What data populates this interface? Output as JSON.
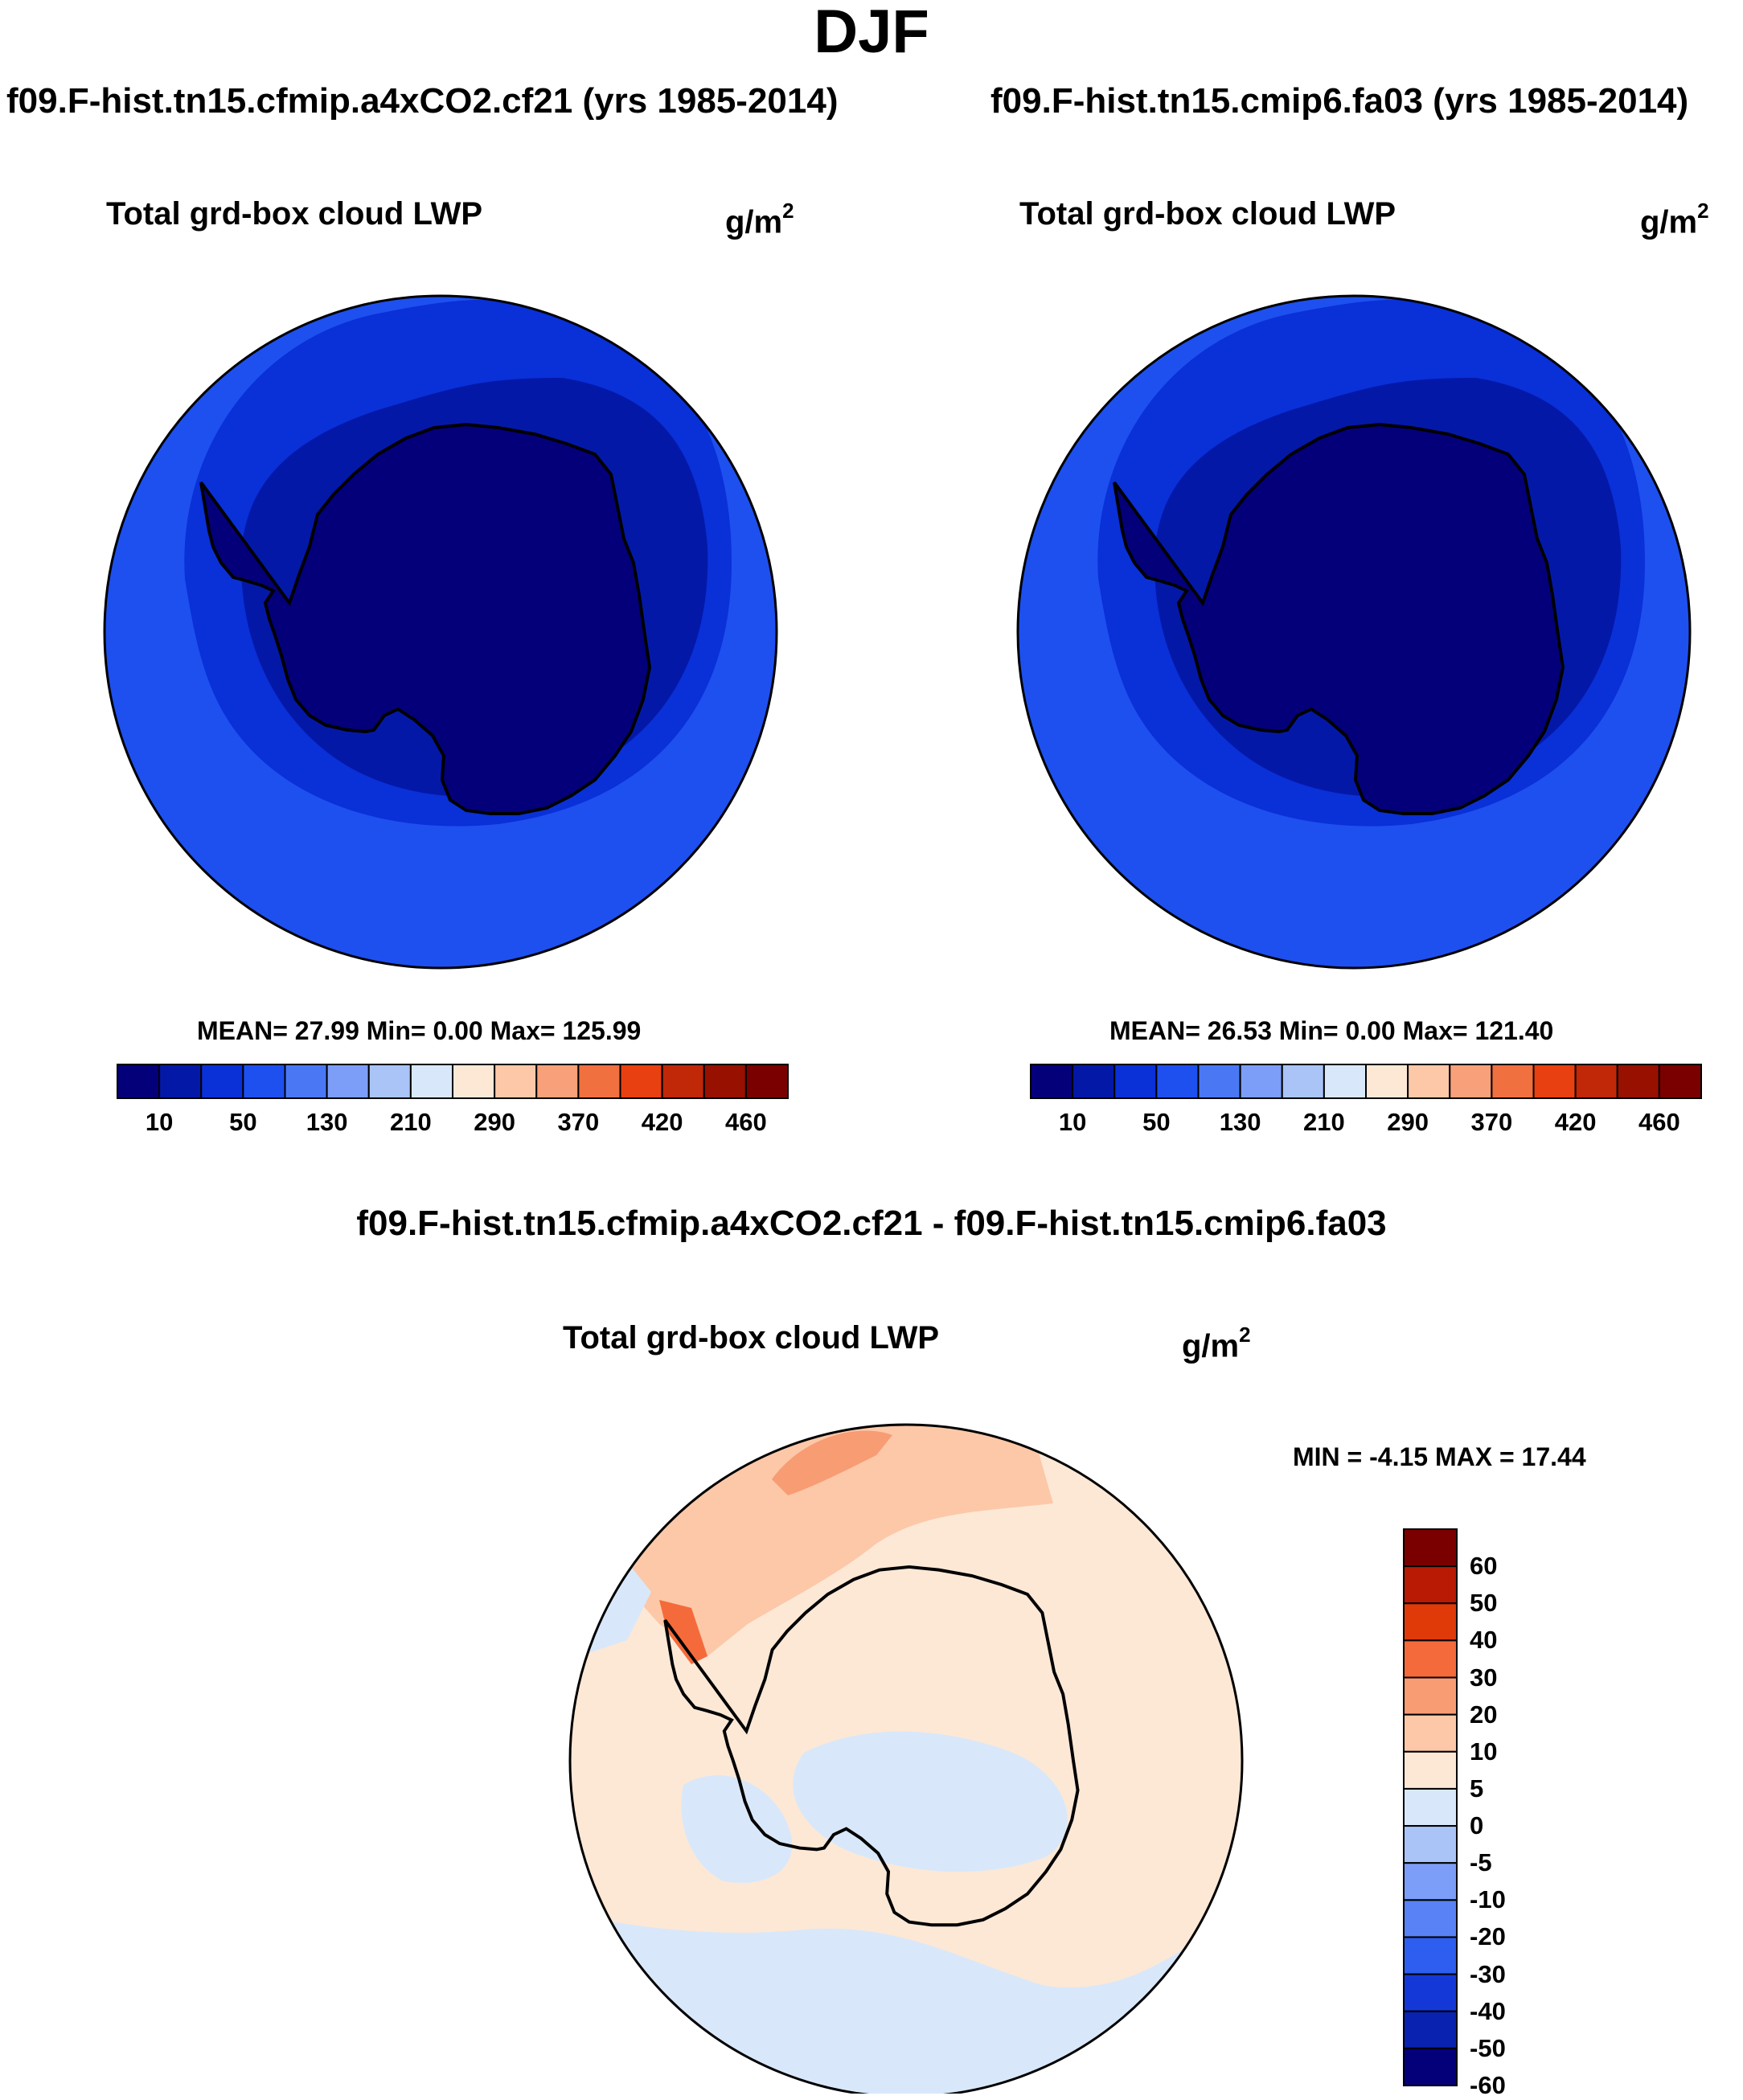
{
  "figure": {
    "title": "DJF",
    "diff_title": "f09.F-hist.tn15.cfmip.a4xCO2.cf21 - f09.F-hist.tn15.cmip6.fa03"
  },
  "panels": {
    "left": {
      "case_title": "f09.F-hist.tn15.cfmip.a4xCO2.cf21 (yrs 1985-2014)",
      "variable": "Total grd-box cloud LWP",
      "units_base": "g/m",
      "units_exp": "2",
      "stats": "MEAN=  27.99  Min=   0.00  Max= 125.99"
    },
    "right": {
      "case_title": "f09.F-hist.tn15.cmip6.fa03 (yrs 1985-2014)",
      "variable": "Total grd-box cloud LWP",
      "units_base": "g/m",
      "units_exp": "2",
      "stats": "MEAN=  26.53  Min=   0.00  Max= 121.40"
    },
    "diff": {
      "variable": "Total grd-box cloud LWP",
      "units_base": "g/m",
      "units_exp": "2",
      "stats": "MIN =  -4.15 MAX =  17.44"
    }
  },
  "colorbar_abs": {
    "colors": [
      "#04007a",
      "#0418a8",
      "#0a30d8",
      "#1e50f0",
      "#4a78f5",
      "#7c9ef8",
      "#aac4f8",
      "#d8e8fa",
      "#fde8d6",
      "#fcc8a8",
      "#f8a07a",
      "#f07040",
      "#e84010",
      "#c02808",
      "#981000",
      "#7a0000"
    ],
    "labels": [
      "10",
      "50",
      "130",
      "210",
      "290",
      "370",
      "420",
      "460"
    ]
  },
  "colorbar_diff": {
    "colors": [
      "#7a0000",
      "#b81a04",
      "#e03a08",
      "#f56a3a",
      "#f89c74",
      "#fcc8a8",
      "#fde8d6",
      "#d8e8fa",
      "#aac4f8",
      "#7c9ef8",
      "#5882f5",
      "#2e5ef0",
      "#1438d8",
      "#0a22b0",
      "#04007a"
    ],
    "labels": [
      "60",
      "50",
      "40",
      "30",
      "20",
      "10",
      "5",
      "0",
      "-5",
      "-10",
      "-20",
      "-30",
      "-40",
      "-50",
      "-60"
    ]
  },
  "map_colors": {
    "outer": "#1e50f0",
    "middle": "#0a30d8",
    "inner": "#0418a8",
    "core": "#04007a",
    "diff_pos_small": "#fde8d6",
    "diff_neg_small": "#d8e8fa",
    "diff_pos_10": "#fcc8a8",
    "diff_pos_20": "#f89c74",
    "diff_pos_30": "#f56a3a"
  }
}
